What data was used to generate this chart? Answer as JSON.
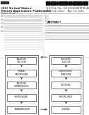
{
  "bg_color": "#ffffff",
  "barcode_color": "#111111",
  "left_col_boxes": [
    "ENCODER\nSECTION",
    "SIGNAL\nPROCESSING",
    "ENCODER\nCOMPRESSION",
    "MULTIPLEXER",
    "TRANSMISSION"
  ],
  "right_col_boxes": [
    "DECODER\nSECTION",
    "DEMUX/SYNC\nFUNCTION",
    "DECODER",
    "MULTIPLEXER",
    "DISPLAY"
  ],
  "box_facecolor": "#ffffff",
  "box_edge_color": "#444444",
  "container_edge_color": "#555555",
  "container_face_color": "#f5f5f5",
  "arrow_color": "#333333",
  "text_color": "#111111",
  "header_bg": "#ffffff",
  "line_color": "#bbbbbb",
  "font_size_box": 2.2,
  "font_size_header": 3.2,
  "font_size_small": 2.0
}
